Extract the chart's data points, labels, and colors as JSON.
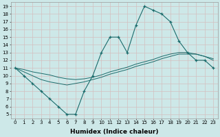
{
  "xlabel": "Humidex (Indice chaleur)",
  "x": [
    0,
    1,
    2,
    3,
    4,
    5,
    6,
    7,
    8,
    9,
    10,
    11,
    12,
    13,
    14,
    15,
    16,
    17,
    18,
    19,
    20,
    21,
    22,
    23
  ],
  "line1": [
    11,
    10,
    9,
    8,
    7,
    6,
    5,
    5,
    8,
    10,
    13,
    15,
    15,
    13,
    16.5,
    19,
    18.5,
    18,
    17,
    14.5,
    13,
    12,
    12,
    11
  ],
  "line2": [
    11,
    10.5,
    10,
    9.5,
    9.2,
    9,
    8.8,
    9,
    9.2,
    9.5,
    9.8,
    10.2,
    10.5,
    10.8,
    11.2,
    11.5,
    11.8,
    12.2,
    12.5,
    12.8,
    12.8,
    12.8,
    12.5,
    12.2
  ],
  "line3": [
    11,
    10.8,
    10.5,
    10.3,
    10.1,
    9.8,
    9.6,
    9.5,
    9.6,
    9.8,
    10.1,
    10.5,
    10.8,
    11.1,
    11.5,
    11.8,
    12.1,
    12.5,
    12.8,
    13.0,
    13.0,
    12.8,
    12.5,
    12.0
  ],
  "line_color": "#1a6b6b",
  "bg_color": "#cde8e8",
  "grid_color": "#d4bfbf",
  "ylim_min": 4.5,
  "ylim_max": 19.5,
  "xlim_min": -0.5,
  "xlim_max": 23.5,
  "yticks": [
    5,
    6,
    7,
    8,
    9,
    10,
    11,
    12,
    13,
    14,
    15,
    16,
    17,
    18,
    19
  ],
  "xticks": [
    0,
    1,
    2,
    3,
    4,
    5,
    6,
    7,
    8,
    9,
    10,
    11,
    12,
    13,
    14,
    15,
    16,
    17,
    18,
    19,
    20,
    21,
    22,
    23
  ],
  "tick_fontsize": 5.0,
  "xlabel_fontsize": 6.5,
  "figsize": [
    3.2,
    2.0
  ],
  "dpi": 100
}
